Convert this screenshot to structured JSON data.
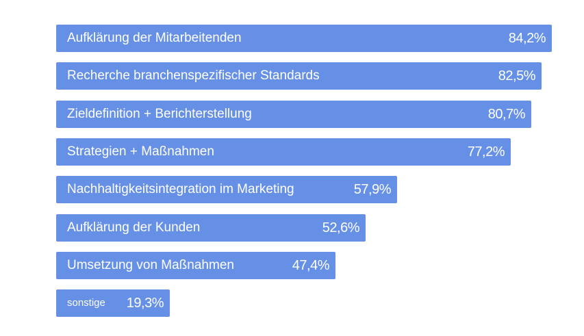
{
  "colors": {
    "bar": "#6690e6",
    "background": "#ffffff",
    "text": "#ffffff"
  },
  "chart_data": {
    "type": "bar",
    "orientation": "horizontal",
    "categories": [
      "Aufklärung der Mitarbeitenden",
      "Recherche branchenspezifischer Standards",
      "Zieldefinition + Berichterstellung",
      "Strategien + Maßnahmen",
      "Nachhaltigkeitsintegration im Marketing",
      "Aufklärung der Kunden",
      "Umsetzung von Maßnahmen",
      "sonstige"
    ],
    "values": [
      84.2,
      82.5,
      80.7,
      77.2,
      57.9,
      52.6,
      47.4,
      19.3
    ],
    "value_labels": [
      "84,2%",
      "82,5%",
      "80,7%",
      "77,2%",
      "57,9%",
      "52,6%",
      "47,4%",
      "19,3%"
    ],
    "unit": "%",
    "xlim": [
      0,
      100
    ],
    "grid": false,
    "legend": "none"
  }
}
